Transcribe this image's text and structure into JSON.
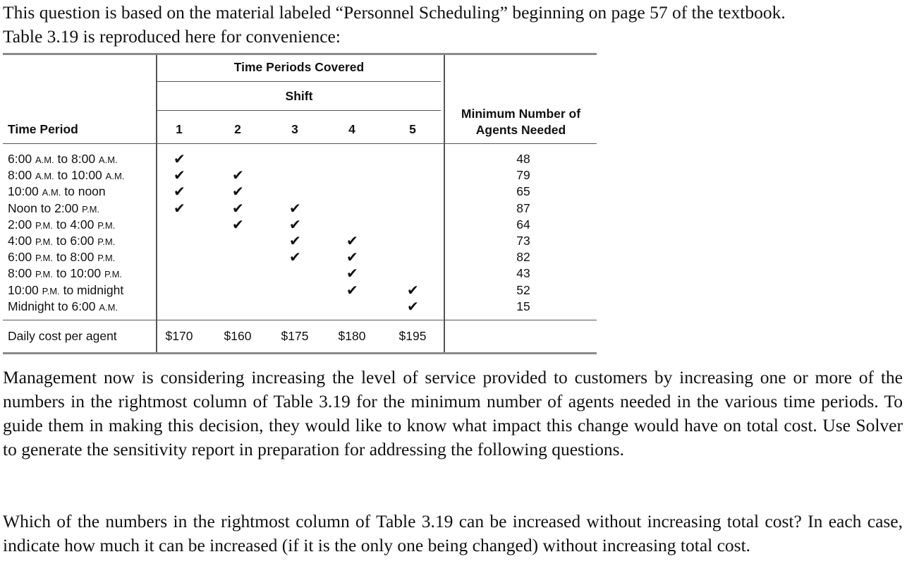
{
  "intro": {
    "line1": "This question is based on the material labeled “Personnel Scheduling” beginning on page 57 of the textbook.",
    "line2": "Table 3.19 is reproduced here for convenience:"
  },
  "table": {
    "header_group": "Time Periods Covered",
    "header_shift": "Shift",
    "col_time_period": "Time Period",
    "col_min_agents_line1": "Minimum Number of",
    "col_min_agents_line2": "Agents Needed",
    "shift_numbers": [
      "1",
      "2",
      "3",
      "4",
      "5"
    ],
    "rows": [
      {
        "period": "6:00 A.M. to 8:00 A.M.",
        "shifts": [
          1,
          0,
          0,
          0,
          0
        ],
        "min": "48"
      },
      {
        "period": "8:00 A.M. to 10:00 A.M.",
        "shifts": [
          1,
          1,
          0,
          0,
          0
        ],
        "min": "79"
      },
      {
        "period": "10:00 A.M. to noon",
        "shifts": [
          1,
          1,
          0,
          0,
          0
        ],
        "min": "65"
      },
      {
        "period": "Noon to 2:00 P.M.",
        "shifts": [
          1,
          1,
          1,
          0,
          0
        ],
        "min": "87"
      },
      {
        "period": "2:00 P.M. to 4:00 P.M.",
        "shifts": [
          0,
          1,
          1,
          0,
          0
        ],
        "min": "64"
      },
      {
        "period": "4:00 P.M. to 6:00 P.M.",
        "shifts": [
          0,
          0,
          1,
          1,
          0
        ],
        "min": "73"
      },
      {
        "period": "6:00 P.M. to 8:00 P.M.",
        "shifts": [
          0,
          0,
          1,
          1,
          0
        ],
        "min": "82"
      },
      {
        "period": "8:00 P.M. to 10:00 P.M.",
        "shifts": [
          0,
          0,
          0,
          1,
          0
        ],
        "min": "43"
      },
      {
        "period": "10:00 P.M. to midnight",
        "shifts": [
          0,
          0,
          0,
          1,
          1
        ],
        "min": "52"
      },
      {
        "period": "Midnight to 6:00 A.M.",
        "shifts": [
          0,
          0,
          0,
          0,
          1
        ],
        "min": "15"
      }
    ],
    "cost_label": "Daily cost per agent",
    "costs": [
      "$170",
      "$160",
      "$175",
      "$180",
      "$195"
    ],
    "check_glyph": "✔"
  },
  "paragraph2": "Management now is considering increasing the level of service provided to customers by increasing one or more of the numbers in the rightmost column of Table 3.19 for the minimum number of agents needed in the various time periods. To guide them in making this decision, they would like to know what impact this change would have on total cost. Use Solver to generate the sensitivity report in preparation for addressing the following questions.",
  "paragraph3": "Which of the numbers in the rightmost column of Table 3.19 can be increased without increasing total cost? In each case, indicate how much it can be increased (if it is the only one being changed) without increasing total cost."
}
